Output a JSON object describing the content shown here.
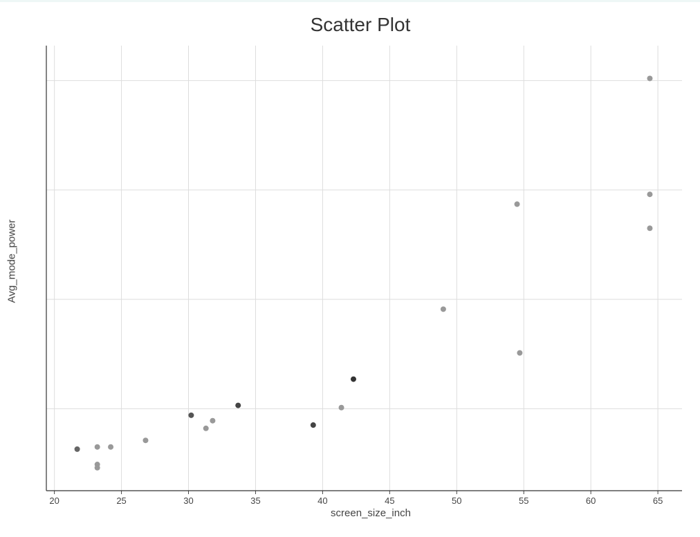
{
  "chart_data": {
    "type": "scatter",
    "title": "Scatter Plot",
    "xlabel": "screen_size_inch",
    "ylabel": "Avg_mode_power",
    "xlim": [
      19.4,
      66.8
    ],
    "ylim": [
      -0.25,
      3.82
    ],
    "x_ticks": [
      20,
      25,
      30,
      35,
      40,
      45,
      50,
      55,
      60,
      65
    ],
    "x_tick_labels": [
      "20",
      "25",
      "30",
      "35",
      "40",
      "45",
      "50",
      "55",
      "60",
      "65"
    ],
    "y_gridlines": [
      0.5,
      1.5,
      2.5,
      3.5
    ],
    "y_tick_labels": [],
    "grid": true,
    "points": [
      {
        "x": 21.7,
        "y": 0.13,
        "shade": "#666666"
      },
      {
        "x": 23.2,
        "y": 0.15,
        "shade": "#999999"
      },
      {
        "x": 23.2,
        "y": -0.01,
        "shade": "#999999"
      },
      {
        "x": 23.2,
        "y": -0.04,
        "shade": "#999999"
      },
      {
        "x": 24.2,
        "y": 0.15,
        "shade": "#999999"
      },
      {
        "x": 26.8,
        "y": 0.21,
        "shade": "#999999"
      },
      {
        "x": 30.2,
        "y": 0.44,
        "shade": "#555555"
      },
      {
        "x": 31.3,
        "y": 0.32,
        "shade": "#999999"
      },
      {
        "x": 31.8,
        "y": 0.39,
        "shade": "#999999"
      },
      {
        "x": 33.7,
        "y": 0.53,
        "shade": "#444444"
      },
      {
        "x": 39.3,
        "y": 0.35,
        "shade": "#444444"
      },
      {
        "x": 41.4,
        "y": 0.51,
        "shade": "#999999"
      },
      {
        "x": 42.3,
        "y": 0.77,
        "shade": "#333333"
      },
      {
        "x": 49.0,
        "y": 1.41,
        "shade": "#999999"
      },
      {
        "x": 54.5,
        "y": 2.37,
        "shade": "#999999"
      },
      {
        "x": 54.7,
        "y": 1.01,
        "shade": "#999999"
      },
      {
        "x": 64.4,
        "y": 3.52,
        "shade": "#999999"
      },
      {
        "x": 64.4,
        "y": 2.46,
        "shade": "#999999"
      },
      {
        "x": 64.4,
        "y": 2.15,
        "shade": "#999999"
      }
    ]
  }
}
